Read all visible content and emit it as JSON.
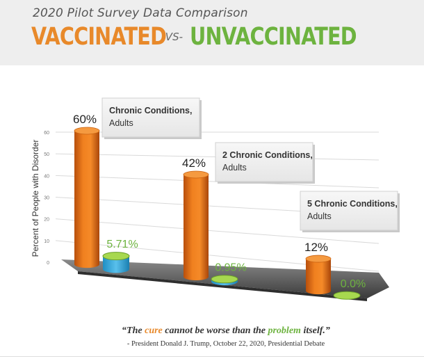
{
  "header": {
    "subtitle": "2020 Pilot Survey Data Comparison",
    "title_left": "VACCINATED",
    "title_vs": "-VS-",
    "title_right": "UNVACCINATED"
  },
  "chart_data": {
    "type": "bar",
    "ylabel": "Percent of People with Disorder",
    "ylim": [
      0,
      60
    ],
    "yticks": [
      "0",
      "10",
      "20",
      "30",
      "40",
      "50",
      "60"
    ],
    "categories": [
      "Chronic Conditions, Adults",
      "2 Chronic Conditions, Adults",
      "5 Chronic Conditions, Adults"
    ],
    "category_lines": [
      [
        "Chronic Conditions,",
        "Adults"
      ],
      [
        "2 Chronic Conditions,",
        "Adults"
      ],
      [
        "5 Chronic Conditions,",
        "Adults"
      ]
    ],
    "series": [
      {
        "values": [
          60,
          42,
          12
        ],
        "labels": [
          "60%",
          "42%",
          "12%"
        ],
        "color": "#e8721c"
      },
      {
        "values": [
          5.71,
          0.95,
          0.0
        ],
        "labels": [
          "5.71%",
          "0.95%",
          "0.0%"
        ],
        "color": "#8cc63f"
      }
    ],
    "grid": true,
    "style": "3d-cylinder"
  },
  "quote": {
    "open": "“The ",
    "cure": "cure",
    "mid": " cannot be worse than the ",
    "problem": "problem",
    "close": " itself.”",
    "attribution": "- President Donald J. Trump, October 22, 2020, Presidential Debate"
  },
  "colors": {
    "vaccinated": "#e8892a",
    "unvaccinated": "#6db33f",
    "floor": "#4a4a4a"
  }
}
